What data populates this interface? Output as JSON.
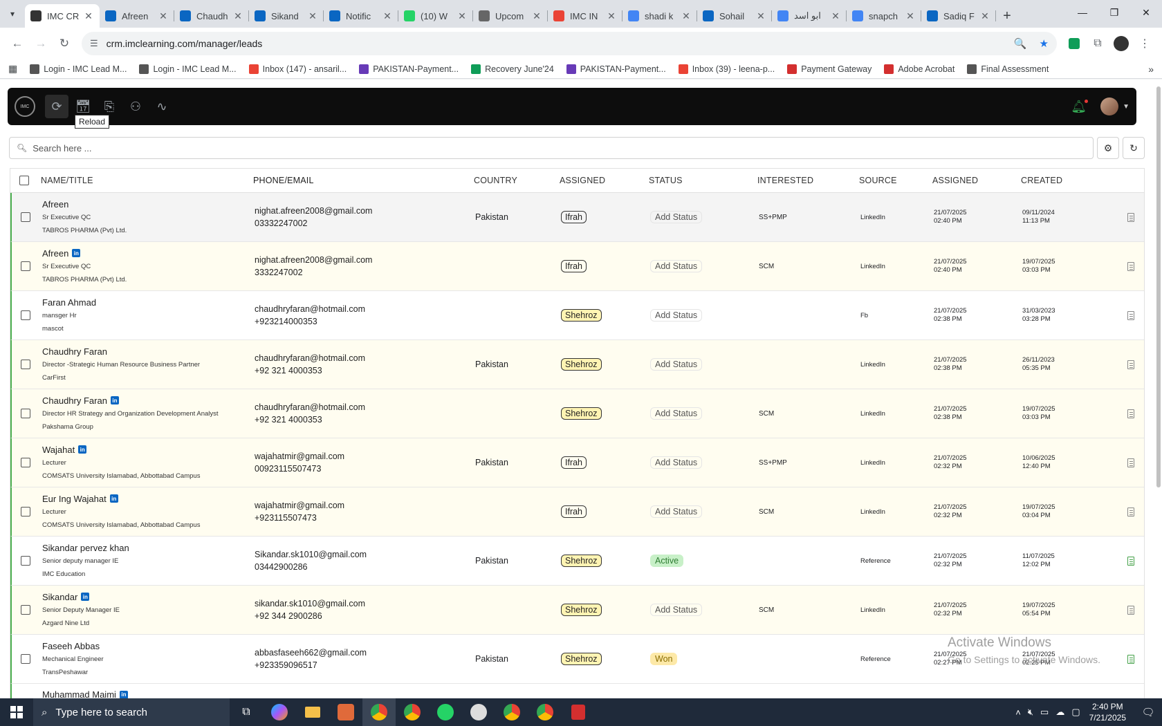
{
  "browser": {
    "tabs": [
      {
        "title": "IMC CR",
        "color": "#333",
        "active": true
      },
      {
        "title": "Afreen",
        "color": "#0a66c2"
      },
      {
        "title": "Chaudh",
        "color": "#0a66c2"
      },
      {
        "title": "Sikand",
        "color": "#0a66c2"
      },
      {
        "title": "Notific",
        "color": "#0a66c2"
      },
      {
        "title": "(10) W",
        "color": "#25d366"
      },
      {
        "title": "Upcom",
        "color": "#666"
      },
      {
        "title": "IMC IN",
        "color": "#ea4335"
      },
      {
        "title": "shadi k",
        "color": "#4285f4"
      },
      {
        "title": "Sohail",
        "color": "#0a66c2"
      },
      {
        "title": "ابو اسد",
        "color": "#4285f4"
      },
      {
        "title": "snapch",
        "color": "#4285f4"
      },
      {
        "title": "Sadiq F",
        "color": "#0a66c2"
      }
    ],
    "url": "crm.imclearning.com/manager/leads",
    "bookmarks": [
      {
        "label": "Login - IMC Lead M...",
        "color": "#555"
      },
      {
        "label": "Login - IMC Lead M...",
        "color": "#555"
      },
      {
        "label": "Inbox (147) - ansaril...",
        "color": "#ea4335"
      },
      {
        "label": "PAKISTAN-Payment...",
        "color": "#673ab7"
      },
      {
        "label": "Recovery June'24",
        "color": "#0f9d58"
      },
      {
        "label": "PAKISTAN-Payment...",
        "color": "#673ab7"
      },
      {
        "label": "Inbox (39) - leena-p...",
        "color": "#ea4335"
      },
      {
        "label": "Payment Gateway",
        "color": "#d32f2f"
      },
      {
        "label": "Adobe Acrobat",
        "color": "#d32f2f"
      },
      {
        "label": "Final Assessment",
        "color": "#555"
      }
    ]
  },
  "app": {
    "tooltip": "Reload",
    "search_placeholder": "Search here ...",
    "headers": [
      "NAME/TITLE",
      "PHONE/EMAIL",
      "COUNTRY",
      "ASSIGNED",
      "STATUS",
      "INTERESTED",
      "SOURCE",
      "ASSIGNED",
      "CREATED"
    ],
    "rows": [
      {
        "name": "Afreen",
        "li": false,
        "title": "Sr Executive QC",
        "org": "TABROS PHARMA (Pvt) Ltd.",
        "email": "nighat.afreen2008@gmail.com",
        "phone": "03332247002",
        "country": "Pakistan",
        "assigned": "Ifrah",
        "status": "Add Status",
        "status_type": "add",
        "interested": "SS+PMP",
        "source": "LinkedIn",
        "assigned_date": "21/07/2025",
        "assigned_time": "02:40 PM",
        "created_date": "09/11/2024",
        "created_time": "11:13 PM",
        "bg": "first",
        "doc": "grey"
      },
      {
        "name": "Afreen",
        "li": true,
        "title": "Sr Executive QC",
        "org": "TABROS PHARMA (Pvt) Ltd.",
        "email": "nighat.afreen2008@gmail.com",
        "phone": "3332247002",
        "country": "",
        "assigned": "Ifrah",
        "status": "Add Status",
        "status_type": "add",
        "interested": "SCM",
        "source": "LinkedIn",
        "assigned_date": "21/07/2025",
        "assigned_time": "02:40 PM",
        "created_date": "19/07/2025",
        "created_time": "03:03 PM",
        "bg": "yellow",
        "doc": "grey"
      },
      {
        "name": "Faran Ahmad",
        "li": false,
        "title": "mansger Hr",
        "org": "mascot",
        "email": "chaudhryfaran@hotmail.com",
        "phone": "+923214000353",
        "country": "",
        "assigned": "Shehroz",
        "status": "Add Status",
        "status_type": "add",
        "interested": "",
        "source": "Fb",
        "assigned_date": "21/07/2025",
        "assigned_time": "02:38 PM",
        "created_date": "31/03/2023",
        "created_time": "03:28 PM",
        "bg": "plain",
        "doc": "grey"
      },
      {
        "name": "Chaudhry Faran",
        "li": false,
        "title": "Director -Strategic Human Resource Business Partner",
        "org": "CarFirst",
        "email": "chaudhryfaran@hotmail.com",
        "phone": "+92 321 4000353",
        "country": "Pakistan",
        "assigned": "Shehroz",
        "status": "Add Status",
        "status_type": "add",
        "interested": "",
        "source": "LinkedIn",
        "assigned_date": "21/07/2025",
        "assigned_time": "02:38 PM",
        "created_date": "26/11/2023",
        "created_time": "05:35 PM",
        "bg": "yellow",
        "doc": "grey"
      },
      {
        "name": "Chaudhry Faran",
        "li": true,
        "title": "Director HR Strategy and Organization Development Analyst",
        "org": "Pakshama Group",
        "email": "chaudhryfaran@hotmail.com",
        "phone": "+92 321 4000353",
        "country": "",
        "assigned": "Shehroz",
        "status": "Add Status",
        "status_type": "add",
        "interested": "SCM",
        "source": "LinkedIn",
        "assigned_date": "21/07/2025",
        "assigned_time": "02:38 PM",
        "created_date": "19/07/2025",
        "created_time": "03:03 PM",
        "bg": "yellow",
        "doc": "grey"
      },
      {
        "name": "Wajahat",
        "li": true,
        "title": "Lecturer",
        "org": "COMSATS University Islamabad, Abbottabad Campus",
        "email": "wajahatmir@gmail.com",
        "phone": "00923115507473",
        "country": "Pakistan",
        "assigned": "Ifrah",
        "status": "Add Status",
        "status_type": "add",
        "interested": "SS+PMP",
        "source": "LinkedIn",
        "assigned_date": "21/07/2025",
        "assigned_time": "02:32 PM",
        "created_date": "10/06/2025",
        "created_time": "12:40 PM",
        "bg": "yellow",
        "doc": "grey"
      },
      {
        "name": "Eur Ing Wajahat",
        "li": true,
        "title": "Lecturer",
        "org": "COMSATS University Islamabad, Abbottabad Campus",
        "email": "wajahatmir@gmail.com",
        "phone": "+923115507473",
        "country": "",
        "assigned": "Ifrah",
        "status": "Add Status",
        "status_type": "add",
        "interested": "SCM",
        "source": "LinkedIn",
        "assigned_date": "21/07/2025",
        "assigned_time": "02:32 PM",
        "created_date": "19/07/2025",
        "created_time": "03:04 PM",
        "bg": "yellow",
        "doc": "grey"
      },
      {
        "name": "Sikandar pervez khan",
        "li": false,
        "title": "Senior deputy manager IE",
        "org": "IMC Education",
        "email": "Sikandar.sk1010@gmail.com",
        "phone": "03442900286",
        "country": "Pakistan",
        "assigned": "Shehroz",
        "status": "Active",
        "status_type": "active",
        "interested": "",
        "source": "Reference",
        "assigned_date": "21/07/2025",
        "assigned_time": "02:32 PM",
        "created_date": "11/07/2025",
        "created_time": "12:02 PM",
        "bg": "plain",
        "doc": "green"
      },
      {
        "name": "Sikandar",
        "li": true,
        "title": "Senior Deputy Manager IE",
        "org": "Azgard Nine Ltd",
        "email": "sikandar.sk1010@gmail.com",
        "phone": "+92 344 2900286",
        "country": "",
        "assigned": "Shehroz",
        "status": "Add Status",
        "status_type": "add",
        "interested": "SCM",
        "source": "LinkedIn",
        "assigned_date": "21/07/2025",
        "assigned_time": "02:32 PM",
        "created_date": "19/07/2025",
        "created_time": "05:54 PM",
        "bg": "yellow",
        "doc": "grey"
      },
      {
        "name": "Faseeh Abbas",
        "li": false,
        "title": "Mechanical Engineer",
        "org": "TransPeshawar",
        "email": "abbasfaseeh662@gmail.com",
        "phone": "+923359096517",
        "country": "Pakistan",
        "assigned": "Shehroz",
        "status": "Won",
        "status_type": "won",
        "interested": "",
        "source": "Reference",
        "assigned_date": "21/07/2025",
        "assigned_time": "02:27 PM",
        "created_date": "21/07/2025",
        "created_time": "02:25 PM",
        "bg": "plain",
        "doc": "green"
      }
    ],
    "partial_row_name": "Muhammad Maimi",
    "watermark_title": "Activate Windows",
    "watermark_sub": "Go to Settings to activate Windows."
  },
  "taskbar": {
    "search_placeholder": "Type here to search",
    "time": "2:40 PM",
    "date": "7/21/2025"
  }
}
